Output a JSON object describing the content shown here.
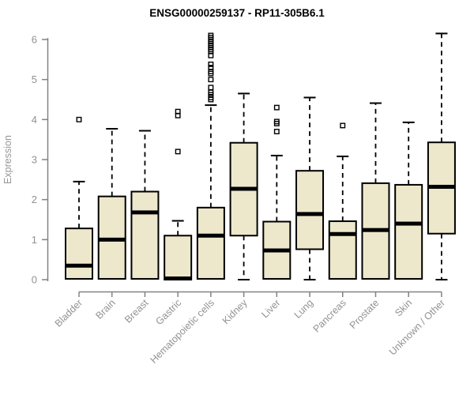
{
  "chart_data": {
    "type": "boxplot",
    "title": "ENSG00000259137 - RP11-305B6.1",
    "ylabel": "Expression",
    "ylim": [
      0,
      6
    ],
    "yticks": [
      0,
      1,
      2,
      3,
      4,
      5,
      6
    ],
    "categories": [
      "Bladder",
      "Brain",
      "Breast",
      "Gastric",
      "Hematopoietic cells",
      "Kidney",
      "Liver",
      "Lung",
      "Pancreas",
      "Prostate",
      "Skin",
      "Unknown / Other"
    ],
    "boxes": [
      {
        "label": "Bladder",
        "whisker_low": 0,
        "q1": 0.02,
        "median": 0.35,
        "q3": 1.28,
        "whisker_high": 2.45,
        "outliers": [
          4.0
        ]
      },
      {
        "label": "Brain",
        "whisker_low": 0,
        "q1": 0.02,
        "median": 1.0,
        "q3": 2.08,
        "whisker_high": 3.77,
        "outliers": []
      },
      {
        "label": "Breast",
        "whisker_low": 0,
        "q1": 0.02,
        "median": 1.68,
        "q3": 2.2,
        "whisker_high": 3.72,
        "outliers": []
      },
      {
        "label": "Gastric",
        "whisker_low": 0,
        "q1": 0.0,
        "median": 0.03,
        "q3": 1.1,
        "whisker_high": 1.47,
        "outliers": [
          4.2,
          4.1,
          3.2
        ]
      },
      {
        "label": "Hematopoietic cells",
        "whisker_low": 0,
        "q1": 0.02,
        "median": 1.1,
        "q3": 1.8,
        "whisker_high": 4.36,
        "outliers": [
          6.1,
          6.05,
          6.0,
          5.95,
          5.9,
          5.85,
          5.8,
          5.75,
          5.7,
          5.6,
          5.38,
          5.3,
          5.2,
          5.15,
          5.0,
          4.8,
          4.68,
          4.62,
          4.55,
          4.5
        ]
      },
      {
        "label": "Kidney",
        "whisker_low": 0,
        "q1": 1.1,
        "median": 2.27,
        "q3": 3.42,
        "whisker_high": 4.65,
        "outliers": []
      },
      {
        "label": "Liver",
        "whisker_low": 0,
        "q1": 0.02,
        "median": 0.73,
        "q3": 1.45,
        "whisker_high": 3.1,
        "outliers": [
          4.3,
          3.95,
          3.9,
          3.7
        ]
      },
      {
        "label": "Lung",
        "whisker_low": 0,
        "q1": 0.76,
        "median": 1.64,
        "q3": 2.72,
        "whisker_high": 4.55,
        "outliers": []
      },
      {
        "label": "Pancreas",
        "whisker_low": 0,
        "q1": 0.02,
        "median": 1.14,
        "q3": 1.46,
        "whisker_high": 3.08,
        "outliers": [
          3.85
        ]
      },
      {
        "label": "Prostate",
        "whisker_low": 0,
        "q1": 0.02,
        "median": 1.24,
        "q3": 2.41,
        "whisker_high": 4.41,
        "outliers": []
      },
      {
        "label": "Skin",
        "whisker_low": 0,
        "q1": 0.02,
        "median": 1.4,
        "q3": 2.37,
        "whisker_high": 3.93,
        "outliers": []
      },
      {
        "label": "Unknown / Other",
        "whisker_low": 0,
        "q1": 1.15,
        "median": 2.32,
        "q3": 3.43,
        "whisker_high": 6.15,
        "outliers": []
      }
    ],
    "grid": false,
    "legend": "none"
  },
  "colors": {
    "background": "#ffffff",
    "box_fill": "#ede8cb",
    "box_border": "#000000",
    "median": "#000000",
    "whisker": "#000000",
    "outlier": "#000000",
    "axis": "#828282",
    "tick_label": "#929292",
    "title": "#000000"
  }
}
